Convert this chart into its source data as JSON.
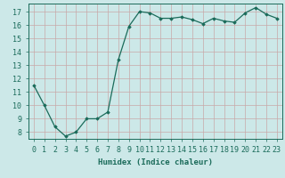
{
  "x": [
    0,
    1,
    2,
    3,
    4,
    5,
    6,
    7,
    8,
    9,
    10,
    11,
    12,
    13,
    14,
    15,
    16,
    17,
    18,
    19,
    20,
    21,
    22,
    23
  ],
  "y": [
    11.5,
    10.0,
    8.4,
    7.7,
    8.0,
    9.0,
    9.0,
    9.5,
    13.4,
    15.9,
    17.0,
    16.9,
    16.5,
    16.5,
    16.6,
    16.4,
    16.1,
    16.5,
    16.3,
    16.2,
    16.9,
    17.3,
    16.8,
    16.5
  ],
  "line_color": "#1a6b5a",
  "marker": "D",
  "marker_size": 1.8,
  "bg_color": "#cce8e8",
  "grid_color": "#b0d0d0",
  "xlabel": "Humidex (Indice chaleur)",
  "ylim": [
    7.5,
    17.6
  ],
  "xlim": [
    -0.5,
    23.5
  ],
  "yticks": [
    8,
    9,
    10,
    11,
    12,
    13,
    14,
    15,
    16,
    17
  ],
  "xticks": [
    0,
    1,
    2,
    3,
    4,
    5,
    6,
    7,
    8,
    9,
    10,
    11,
    12,
    13,
    14,
    15,
    16,
    17,
    18,
    19,
    20,
    21,
    22,
    23
  ],
  "xlabel_fontsize": 6.5,
  "tick_fontsize": 6.0,
  "linewidth": 0.9
}
